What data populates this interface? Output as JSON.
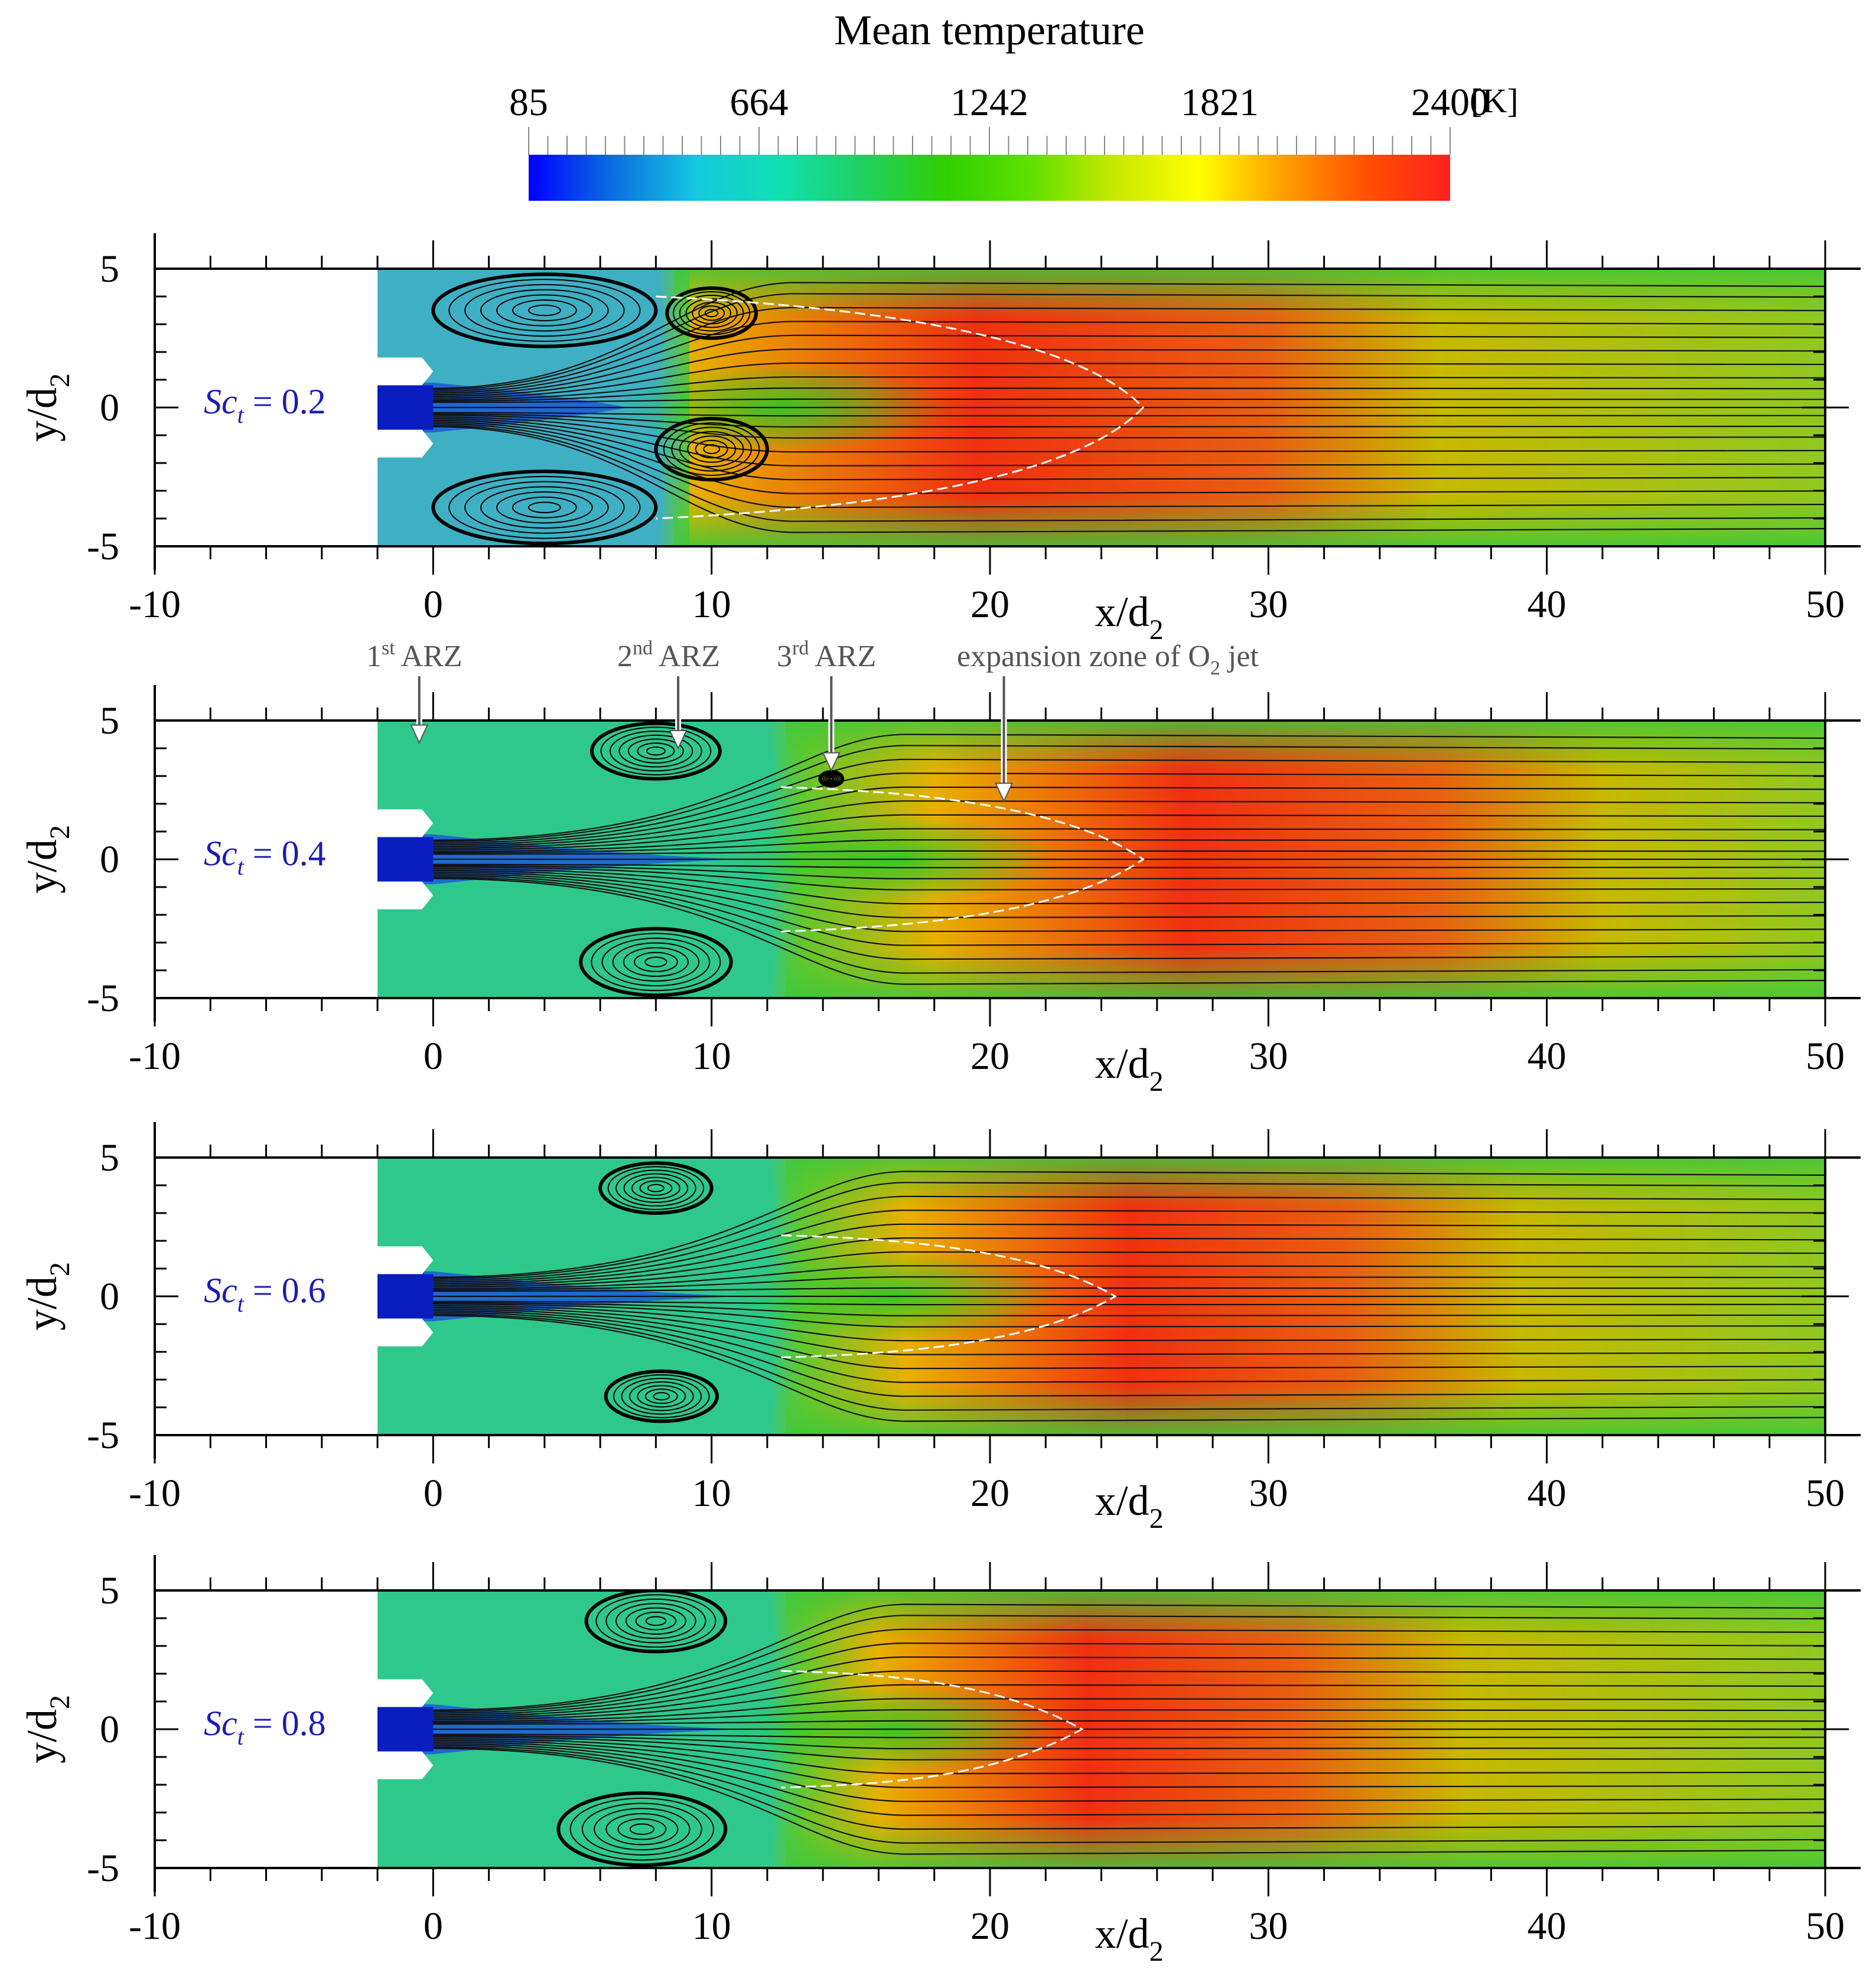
{
  "colorbar": {
    "title": "Mean temperature",
    "unit": "[K]",
    "ticks": [
      "85",
      "664",
      "1242",
      "1821",
      "2400"
    ],
    "min": 85,
    "max": 2400,
    "colors": [
      "#0000ff",
      "#0a6ee0",
      "#16c8e0",
      "#10e0b0",
      "#20d060",
      "#30d000",
      "#60e000",
      "#c8e800",
      "#ffff00",
      "#ffa000",
      "#ff5000",
      "#ff2020"
    ]
  },
  "annotations": {
    "arz1_sup": "st",
    "arz1_text": "ARZ",
    "arz2_sup": "nd",
    "arz2_text": "ARZ",
    "arz3_sup": "rd",
    "arz3_text": "ARZ",
    "expansion_text": "expansion zone of O",
    "expansion_sub": "2",
    "expansion_tail": " jet",
    "arz1_num": "1",
    "arz2_num": "2",
    "arz3_num": "3"
  },
  "chart_data": [
    {
      "type": "heatmap",
      "label_main": "Sc",
      "label_sub": "t",
      "label_rest": " = 0.2",
      "xlabel_main": "x/d",
      "xlabel_sub": "2",
      "ylabel_main": "y/d",
      "ylabel_sub": "2",
      "xlim": [
        -10,
        50
      ],
      "ylim": [
        -5,
        5
      ],
      "xticks": [
        "-10",
        "0",
        "10",
        "20",
        "30",
        "40",
        "50"
      ],
      "yticks": [
        "5",
        "0",
        "-5"
      ],
      "background_color": "#3fb0c4",
      "flame_x_start": 8,
      "flame_x_end": 50,
      "hot_core_x": [
        9,
        30
      ],
      "recirculation_zones": [
        {
          "cx": 4,
          "cy": 3.5,
          "rx": 4,
          "ry": 1.3
        },
        {
          "cx": 4,
          "cy": -3.6,
          "rx": 4,
          "ry": 1.3
        },
        {
          "cx": 10,
          "cy": 3.4,
          "rx": 1.6,
          "ry": 0.9
        },
        {
          "cx": 10,
          "cy": -1.5,
          "rx": 2,
          "ry": 1.1
        }
      ],
      "expansion_zone": {
        "x_start": 8,
        "x_end": 25.5,
        "half_height": 4.0
      }
    },
    {
      "type": "heatmap",
      "label_main": "Sc",
      "label_sub": "t",
      "label_rest": " = 0.4",
      "xlabel_main": "x/d",
      "xlabel_sub": "2",
      "ylabel_main": "y/d",
      "ylabel_sub": "2",
      "xlim": [
        -10,
        50
      ],
      "ylim": [
        -5,
        5
      ],
      "xticks": [
        "-10",
        "0",
        "10",
        "20",
        "30",
        "40",
        "50"
      ],
      "yticks": [
        "5",
        "0",
        "-5"
      ],
      "background_color": "#2fc88c",
      "flame_x_start": 12,
      "flame_x_end": 50,
      "hot_core_x": [
        18,
        36
      ],
      "recirculation_zones": [
        {
          "cx": 8,
          "cy": 3.9,
          "rx": 2.3,
          "ry": 1.0
        },
        {
          "cx": 8,
          "cy": -3.7,
          "rx": 2.7,
          "ry": 1.2
        },
        {
          "cx": 14.3,
          "cy": 2.9,
          "rx": 0.4,
          "ry": 0.25
        }
      ],
      "expansion_zone": {
        "x_start": 12.5,
        "x_end": 25.5,
        "half_height": 2.6
      }
    },
    {
      "type": "heatmap",
      "label_main": "Sc",
      "label_sub": "t",
      "label_rest": " = 0.6",
      "xlabel_main": "x/d",
      "xlabel_sub": "2",
      "ylabel_main": "y/d",
      "ylabel_sub": "2",
      "xlim": [
        -10,
        50
      ],
      "ylim": [
        -5,
        5
      ],
      "xticks": [
        "-10",
        "0",
        "10",
        "20",
        "30",
        "40",
        "50"
      ],
      "yticks": [
        "5",
        "0",
        "-5"
      ],
      "background_color": "#2fc88c",
      "flame_x_start": 12,
      "flame_x_end": 50,
      "hot_core_x": [
        17,
        33
      ],
      "recirculation_zones": [
        {
          "cx": 8,
          "cy": 3.9,
          "rx": 2.0,
          "ry": 0.9
        },
        {
          "cx": 8.2,
          "cy": -3.6,
          "rx": 2.0,
          "ry": 0.9
        }
      ],
      "expansion_zone": {
        "x_start": 12.5,
        "x_end": 24.5,
        "half_height": 2.2
      }
    },
    {
      "type": "heatmap",
      "label_main": "Sc",
      "label_sub": "t",
      "label_rest": " = 0.8",
      "xlabel_main": "x/d",
      "xlabel_sub": "2",
      "ylabel_main": "y/d",
      "ylabel_sub": "2",
      "xlim": [
        -10,
        50
      ],
      "ylim": [
        -5,
        5
      ],
      "xticks": [
        "-10",
        "0",
        "10",
        "20",
        "30",
        "40",
        "50"
      ],
      "yticks": [
        "5",
        "0",
        "-5"
      ],
      "background_color": "#2fc88c",
      "flame_x_start": 12,
      "flame_x_end": 50,
      "hot_core_x": [
        16,
        31
      ],
      "recirculation_zones": [
        {
          "cx": 8,
          "cy": 3.9,
          "rx": 2.5,
          "ry": 1.1
        },
        {
          "cx": 7.5,
          "cy": -3.6,
          "rx": 3.0,
          "ry": 1.3
        }
      ],
      "expansion_zone": {
        "x_start": 12.5,
        "x_end": 23.3,
        "half_height": 2.1
      }
    }
  ]
}
